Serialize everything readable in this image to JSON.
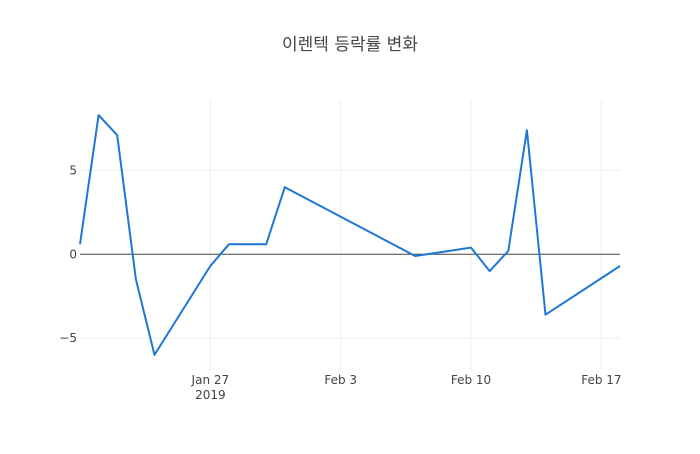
{
  "chart_data": {
    "type": "line",
    "title": "이렌텍 등락률 변화",
    "xlabel": "",
    "ylabel": "",
    "grid": true,
    "xlim": [
      "2019-01-20",
      "2019-02-18"
    ],
    "ylim": [
      -6.9,
      9.2
    ],
    "x_ticks": [
      {
        "value": "2019-01-27",
        "label": "Jan 27",
        "sublabel": "2019"
      },
      {
        "value": "2019-02-03",
        "label": "Feb 3"
      },
      {
        "value": "2019-02-10",
        "label": "Feb 10"
      },
      {
        "value": "2019-02-17",
        "label": "Feb 17"
      }
    ],
    "y_ticks": [
      {
        "value": -5,
        "label": "−5"
      },
      {
        "value": 0,
        "label": "0"
      },
      {
        "value": 5,
        "label": "5"
      }
    ],
    "line_color": "#1f77d4",
    "zero_line_color": "#444444",
    "grid_color": "#eeeeee",
    "series": [
      {
        "x": [
          "2019-01-20",
          "2019-01-21",
          "2019-01-22",
          "2019-01-23",
          "2019-01-24",
          "2019-01-27",
          "2019-01-28",
          "2019-01-30",
          "2019-01-31",
          "2019-02-07",
          "2019-02-10",
          "2019-02-11",
          "2019-02-12",
          "2019-02-13",
          "2019-02-14",
          "2019-02-18"
        ],
        "y": [
          0.6,
          8.3,
          7.1,
          -1.5,
          -6.0,
          -0.7,
          0.6,
          0.6,
          4.0,
          -0.1,
          0.4,
          -1.0,
          0.2,
          7.4,
          -3.6,
          -0.7
        ]
      }
    ]
  }
}
